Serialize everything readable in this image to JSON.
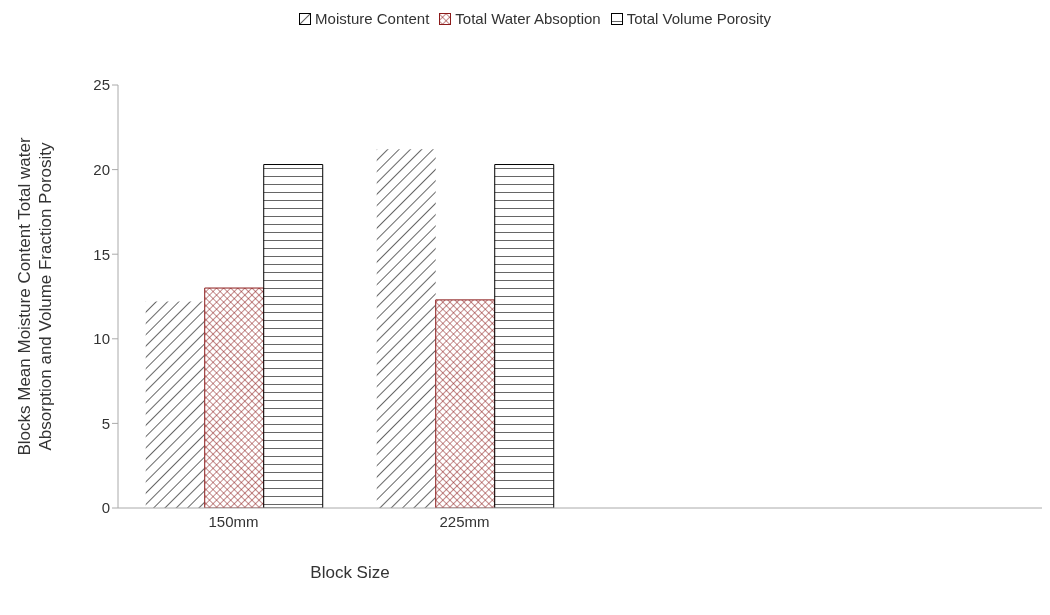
{
  "chart_data": {
    "type": "bar",
    "xlabel": "Block Size",
    "ylabel": "Blocks Mean Moisture Content Total water Absorption and Volume Fraction Porosity",
    "categories": [
      "150mm",
      "225mm",
      null,
      null
    ],
    "series": [
      {
        "name": "Moisture Content",
        "color": "#000000",
        "values": [
          12.2,
          21.2,
          null,
          null
        ]
      },
      {
        "name": "Total Water Absoption",
        "color": "#8b1a1a",
        "values": [
          13.0,
          12.3,
          null,
          null
        ]
      },
      {
        "name": "Total Volume Porosity",
        "color": "#000000",
        "values": [
          20.3,
          20.3,
          null,
          null
        ]
      }
    ],
    "ylim": [
      0,
      25
    ],
    "yticks": [
      0,
      5,
      10,
      15,
      20,
      25
    ],
    "legend": "top"
  }
}
